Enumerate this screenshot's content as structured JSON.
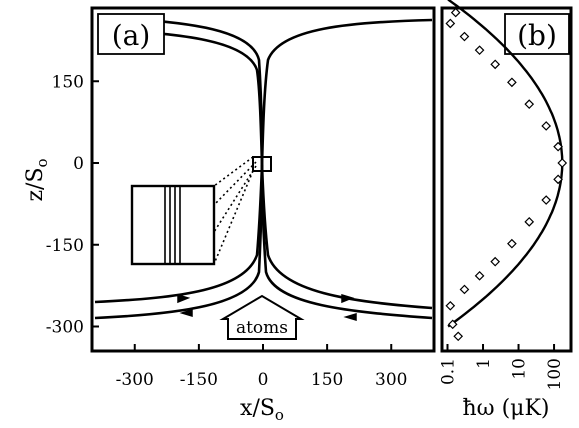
{
  "chart_data": [
    {
      "panel": "(a)",
      "type": "line",
      "xlabel_main": "x/S",
      "xlabel_sub": "o",
      "ylabel_main": "z/S",
      "ylabel_sub": "o",
      "xlim": [
        -400,
        400
      ],
      "ylim": [
        -420,
        300
      ],
      "x_ticks": [
        {
          "value": -300,
          "label": "-300"
        },
        {
          "value": -150,
          "label": "-150"
        },
        {
          "value": 0,
          "label": "0"
        },
        {
          "value": 150,
          "label": "150"
        },
        {
          "value": 300,
          "label": "300"
        }
      ],
      "y_ticks": [
        {
          "value": 150,
          "label": "150"
        },
        {
          "value": 0,
          "label": "0"
        },
        {
          "value": -150,
          "label": "-150"
        },
        {
          "value": -300,
          "label": "-300"
        }
      ],
      "annotation": "atoms",
      "grid": false
    },
    {
      "panel": "(b)",
      "type": "scatter",
      "xlabel": "ħω (μK)",
      "xscale": "log",
      "xlim": [
        0.07,
        300
      ],
      "x_ticks": [
        {
          "value": 0.1,
          "label": "0.1"
        },
        {
          "value": 1,
          "label": "1"
        },
        {
          "value": 10,
          "label": "10"
        },
        {
          "value": 100,
          "label": "100"
        }
      ],
      "points": [
        {
          "x": 0.17,
          "z": 276
        },
        {
          "x": 0.12,
          "z": 256
        },
        {
          "x": 0.3,
          "z": 232
        },
        {
          "x": 0.8,
          "z": 207
        },
        {
          "x": 2.2,
          "z": 181
        },
        {
          "x": 6.5,
          "z": 148
        },
        {
          "x": 20,
          "z": 108
        },
        {
          "x": 60,
          "z": 68
        },
        {
          "x": 130,
          "z": 30
        },
        {
          "x": 170,
          "z": 0
        },
        {
          "x": 130,
          "z": -30
        },
        {
          "x": 60,
          "z": -68
        },
        {
          "x": 20,
          "z": -108
        },
        {
          "x": 6.5,
          "z": -148
        },
        {
          "x": 2.2,
          "z": -181
        },
        {
          "x": 0.8,
          "z": -207
        },
        {
          "x": 0.3,
          "z": -232
        },
        {
          "x": 0.12,
          "z": -262
        },
        {
          "x": 0.14,
          "z": -296
        },
        {
          "x": 0.2,
          "z": -318
        }
      ],
      "fit_curve": "parabola",
      "grid": false
    }
  ]
}
